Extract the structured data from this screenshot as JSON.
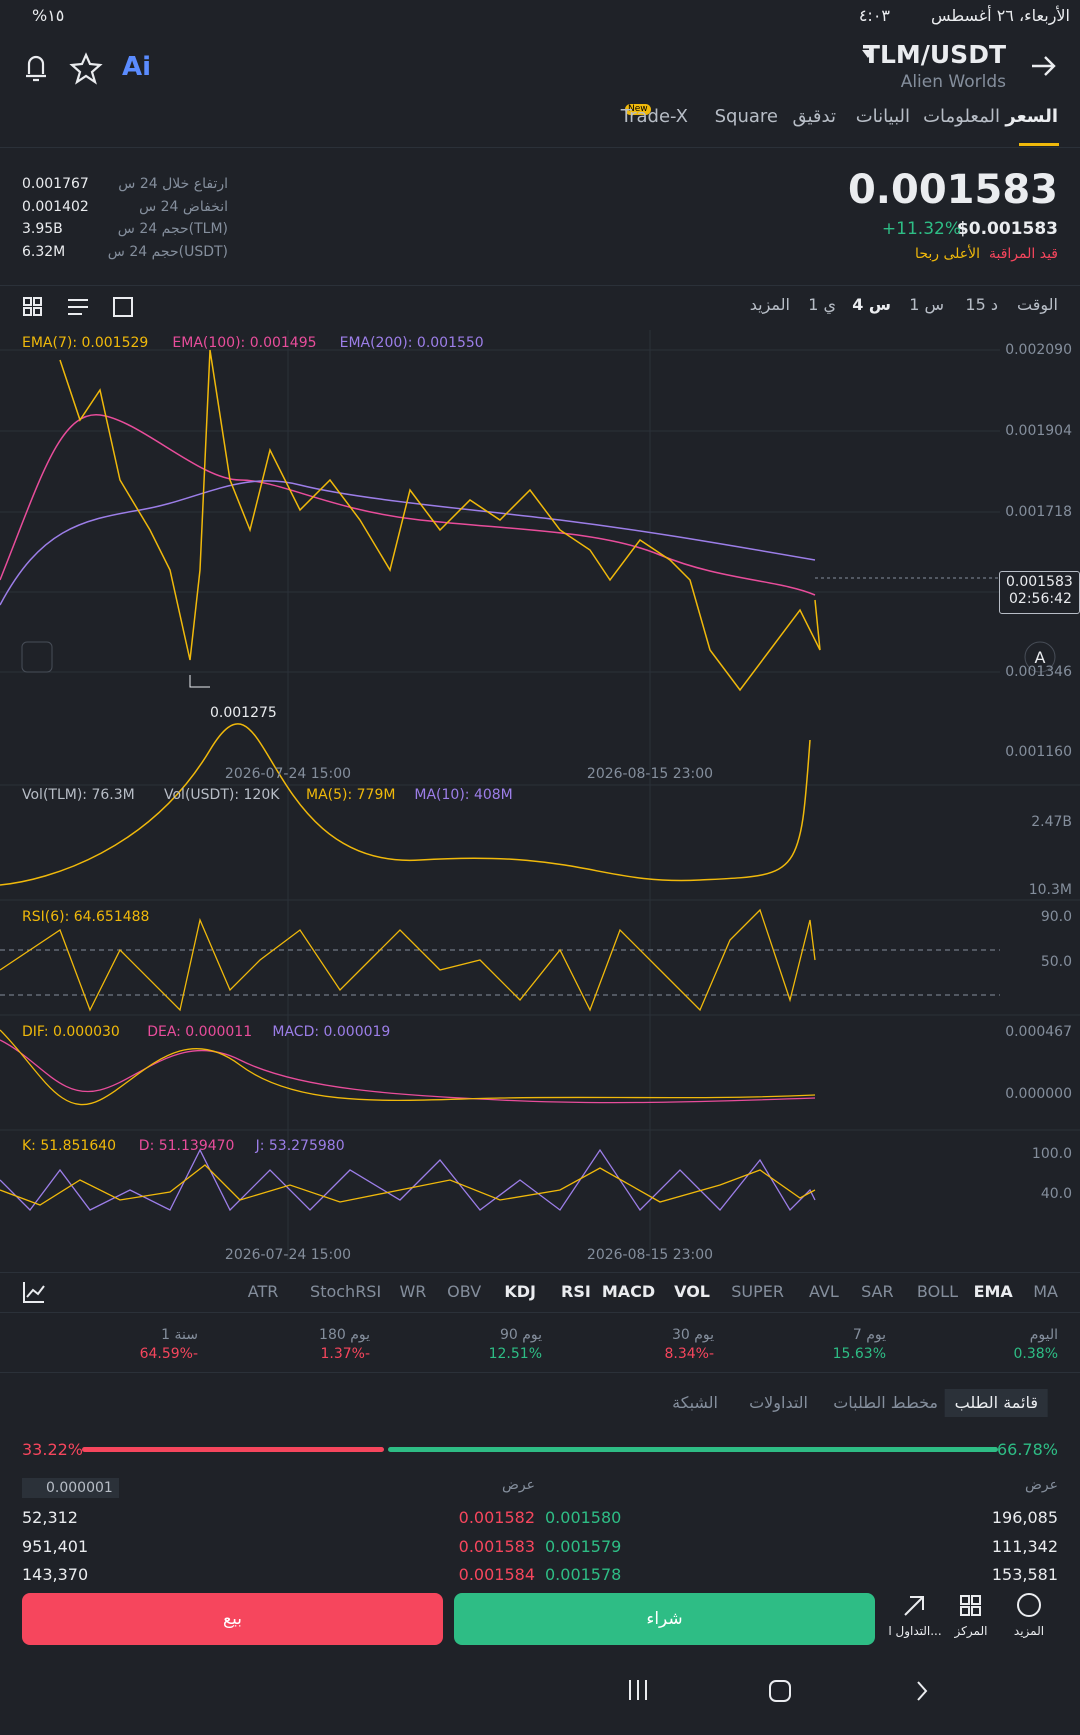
{
  "status_bar": {
    "battery": "%١٥",
    "time": "٤:٠٣",
    "date": "الأربعاء، ٢٦ أغسطس"
  },
  "header": {
    "ai": "Ai",
    "pair": "TLM/USDT",
    "name": "Alien Worlds"
  },
  "tabs": [
    "السعر",
    "المعلومات",
    "البيانات",
    "تدقيق",
    "Square",
    "Trade-X"
  ],
  "tab_badge": "New",
  "price": {
    "last": "0.001583",
    "change": "+11.32%",
    "usd": "$0.001583",
    "watch": "قيد المراقبة",
    "top_gainer": "الأعلى ربحا"
  },
  "stats": [
    {
      "label": "ارتفاع خلال 24 س",
      "value": "0.001767"
    },
    {
      "label": "انخفاض 24 س",
      "value": "0.001402"
    },
    {
      "label": "حجم 24 س(TLM)",
      "value": "3.95B"
    },
    {
      "label": "حجم 24 س(USDT)",
      "value": "6.32M"
    }
  ],
  "intervals": [
    "الوقت",
    "15 د",
    "1 س",
    "4 س",
    "1 ي",
    "المزيد"
  ],
  "main_chart": {
    "legend": [
      "EMA(7): 0.001529",
      "EMA(100): 0.001495",
      "EMA(200): 0.001550"
    ],
    "axis": [
      "0.002090",
      "0.001904",
      "0.001718",
      "0.001346",
      "0.001160"
    ],
    "current": "0.001583",
    "countdown": "02:56:42",
    "low_marker": "0.001275",
    "auto": "A",
    "dates": [
      "2026-07-24 15:00",
      "2026-08-15 23:00"
    ]
  },
  "volume": {
    "legend": [
      "Vol(TLM): 76.3M",
      "Vol(USDT): 120K",
      "MA(5): 779M",
      "MA(10): 408M"
    ],
    "axis": [
      "2.47B",
      "10.3M"
    ]
  },
  "rsi": {
    "legend": [
      "RSI(6): 64.651488"
    ],
    "axis": [
      "90.0",
      "50.0"
    ]
  },
  "macd": {
    "legend": [
      "DIF: 0.000030",
      "DEA: 0.000011",
      "MACD: 0.000019"
    ],
    "axis": [
      "0.000467",
      "0.000000"
    ]
  },
  "kdj": {
    "legend": [
      "K: 51.851640",
      "D: 51.139470",
      "J: 53.275980"
    ],
    "axis": [
      "100.0",
      "40.0"
    ],
    "dates": [
      "2026-07-24 15:00",
      "2026-08-15 23:00"
    ]
  },
  "indicators": [
    "MA",
    "EMA",
    "BOLL",
    "SAR",
    "AVL",
    "SUPER",
    "VOL",
    "MACD",
    "RSI",
    "KDJ",
    "OBV",
    "WR",
    "StochRSI",
    "ATR"
  ],
  "performance": [
    {
      "period": "اليوم",
      "value": "0.38%"
    },
    {
      "period": "7 يوم",
      "value": "15.63%"
    },
    {
      "period": "30 يوم",
      "value": "8.34%-"
    },
    {
      "period": "90 يوم",
      "value": "12.51%"
    },
    {
      "period": "180 يوم",
      "value": "1.37%-"
    },
    {
      "period": "1 سنة",
      "value": "64.59%-"
    }
  ],
  "book_tabs": [
    "قائمة الطلب",
    "مخطط الطلبات",
    "التداولات",
    "الشبكة"
  ],
  "ratio": {
    "bid": "66.78%",
    "ask": "33.22%"
  },
  "book": {
    "bid_header": "عرض",
    "ask_header": "عرض",
    "step": "0.000001",
    "rows": [
      [
        "196,085",
        "0.001580",
        "0.001582",
        "52,312"
      ],
      [
        "111,342",
        "0.001579",
        "0.001583",
        "951,401"
      ],
      [
        "153,581",
        "0.001578",
        "0.001584",
        "143,370"
      ]
    ]
  },
  "actions": {
    "more": "المزيد",
    "position": "المركز",
    "trade": "التداول ا...",
    "buy": "شراء",
    "sell": "بيع"
  }
}
